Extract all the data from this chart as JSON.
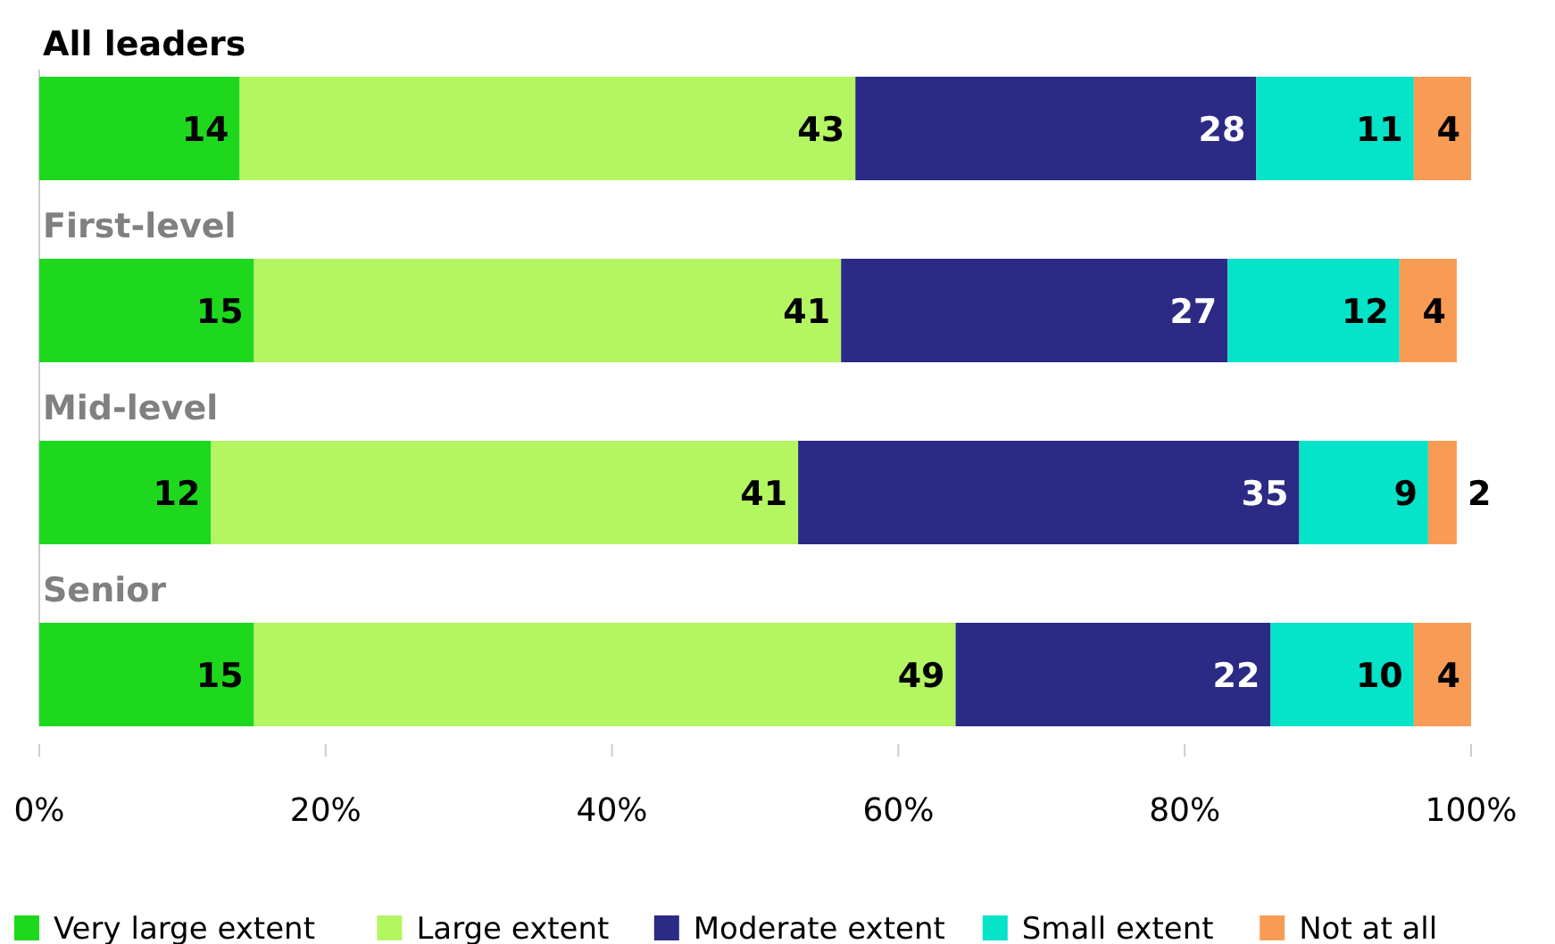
{
  "chart_data": {
    "type": "bar",
    "orientation": "horizontal",
    "stacked": true,
    "categories": [
      "All leaders",
      "First-level",
      "Mid-level",
      "Senior"
    ],
    "series": [
      {
        "name": "Very large extent",
        "color": "#1ed81e",
        "values": [
          14,
          15,
          12,
          15
        ]
      },
      {
        "name": "Large extent",
        "color": "#b4f562",
        "values": [
          43,
          41,
          41,
          49
        ]
      },
      {
        "name": "Moderate extent",
        "color": "#2b2a84",
        "values": [
          28,
          27,
          35,
          22
        ]
      },
      {
        "name": "Small extent",
        "color": "#05e3c8",
        "values": [
          11,
          12,
          9,
          10
        ]
      },
      {
        "name": "Not at all",
        "color": "#f89c55",
        "values": [
          4,
          4,
          2,
          4
        ]
      }
    ],
    "xlim": [
      0,
      100
    ],
    "xticks": [
      {
        "value": 0,
        "label": "0%"
      },
      {
        "value": 20,
        "label": "20%"
      },
      {
        "value": 40,
        "label": "40%"
      },
      {
        "value": 60,
        "label": "60%"
      },
      {
        "value": 80,
        "label": "80%"
      },
      {
        "value": 100,
        "label": "100%"
      }
    ],
    "data_labels": true,
    "legend": "bottom",
    "grid": false
  }
}
